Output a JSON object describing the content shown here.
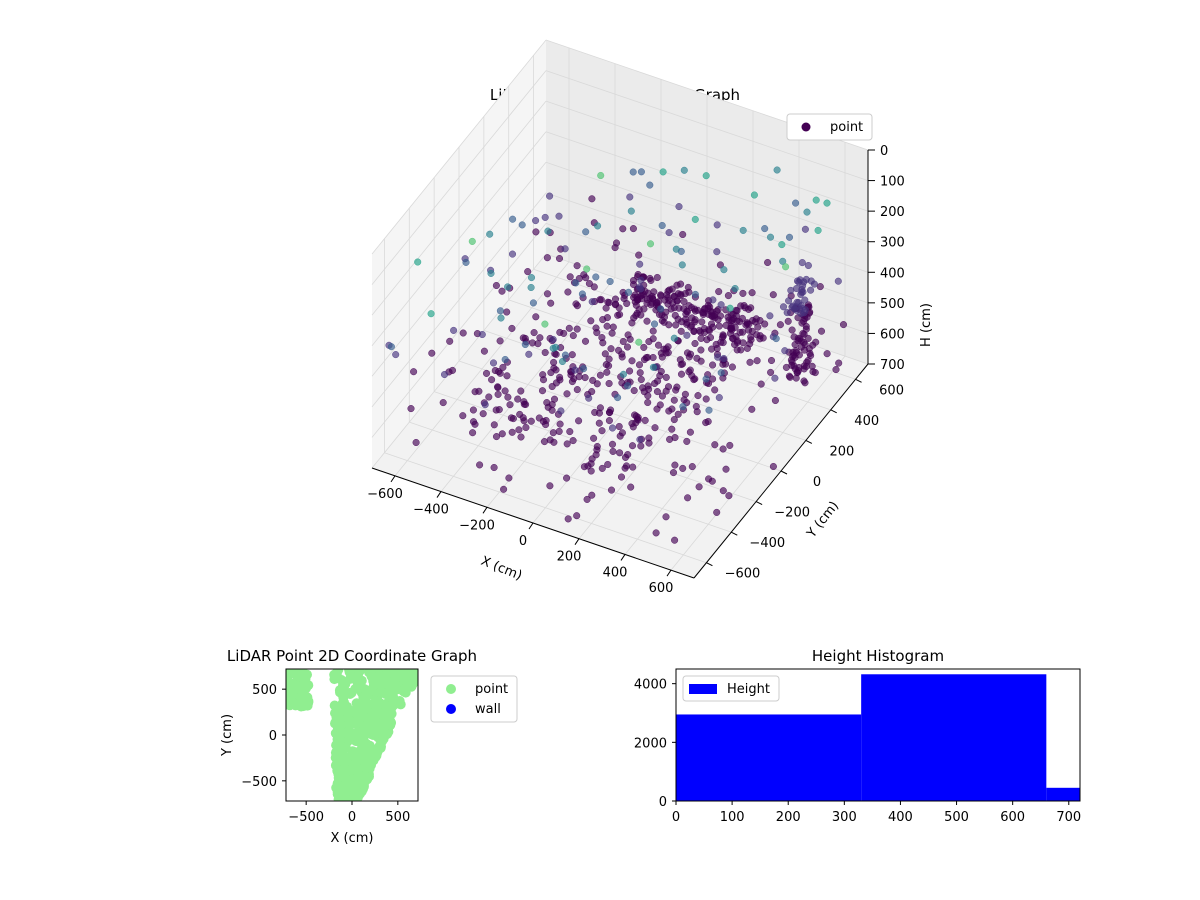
{
  "colors": {
    "point_dark": "#440154",
    "point_mid": "#3b528b",
    "point_teal": "#21918c",
    "point_green": "#5ec962",
    "wall": "#0000ff",
    "point_2d": "#90ee90",
    "hist_bar": "#0000ff",
    "pane": "#f2f2f2",
    "grid": "#d9d9d9"
  },
  "chart_data": [
    {
      "type": "scatter",
      "projection": "3d",
      "title": "LiDAR Point 3D Coordinate Graph",
      "xlabel": "X (cm)",
      "ylabel": "Y (cm)",
      "zlabel": "H (cm)",
      "xlim": [
        -700,
        700
      ],
      "ylim": [
        -700,
        700
      ],
      "zlim": [
        0,
        700
      ],
      "z_inverted": true,
      "x_ticks": [
        "−600",
        "−400",
        "−200",
        "0",
        "200",
        "400",
        "600"
      ],
      "y_ticks": [
        "−600",
        "−400",
        "−200",
        "0",
        "200",
        "400",
        "600"
      ],
      "z_ticks": [
        "0",
        "100",
        "200",
        "300",
        "400",
        "500",
        "600",
        "700"
      ],
      "legend": {
        "placement": "top-right",
        "entries": [
          "point"
        ]
      },
      "series": [
        {
          "name": "point",
          "colormap": "viridis",
          "clusters": [
            {
              "shape": "slab",
              "x": [
                -450,
                300
              ],
              "y": [
                -450,
                500
              ],
              "z": [
                560,
                620
              ],
              "count": 260
            },
            {
              "shape": "ridge",
              "x": [
                -150,
                400
              ],
              "y": [
                300,
                460
              ],
              "z": [
                480,
                560
              ],
              "count": 180
            },
            {
              "shape": "pillar",
              "x": [
                520,
                600
              ],
              "y": [
                350,
                480
              ],
              "z": [
                330,
                640
              ],
              "count": 90
            },
            {
              "shape": "block",
              "x": [
                -250,
                0
              ],
              "y": [
                550,
                700
              ],
              "z": [
                120,
                200
              ],
              "count": 80
            },
            {
              "shape": "scatter",
              "x": [
                -700,
                700
              ],
              "y": [
                -700,
                700
              ],
              "z": [
                0,
                700
              ],
              "count": 320
            }
          ]
        }
      ],
      "grid": true
    },
    {
      "type": "scatter",
      "title": "LiDAR Point 2D Coordinate Graph",
      "xlabel": "X (cm)",
      "ylabel": "Y (cm)",
      "xlim": [
        -720,
        720
      ],
      "ylim": [
        -720,
        720
      ],
      "x_ticks": [
        "−500",
        "0",
        "500"
      ],
      "y_ticks": [
        "−500",
        "0",
        "500"
      ],
      "legend": {
        "placement": "outside-right",
        "entries": [
          "point",
          "wall"
        ]
      },
      "series": [
        {
          "name": "point",
          "region": "dense-diagonal",
          "count": 600
        },
        {
          "name": "wall",
          "count": 0
        }
      ]
    },
    {
      "type": "bar",
      "subtype": "histogram",
      "title": "Height Histogram",
      "xlabel": "",
      "ylabel": "",
      "xlim": [
        0,
        720
      ],
      "ylim": [
        0,
        4500
      ],
      "x_ticks": [
        "0",
        "100",
        "200",
        "300",
        "400",
        "500",
        "600",
        "700"
      ],
      "y_ticks": [
        "0",
        "2000",
        "4000"
      ],
      "legend": {
        "placement": "top-left",
        "entries": [
          "Height"
        ]
      },
      "bins": [
        {
          "start": 0,
          "end": 330,
          "count": 2950
        },
        {
          "start": 330,
          "end": 660,
          "count": 4320
        },
        {
          "start": 660,
          "end": 720,
          "count": 450
        }
      ],
      "series": [
        {
          "name": "Height"
        }
      ]
    }
  ]
}
